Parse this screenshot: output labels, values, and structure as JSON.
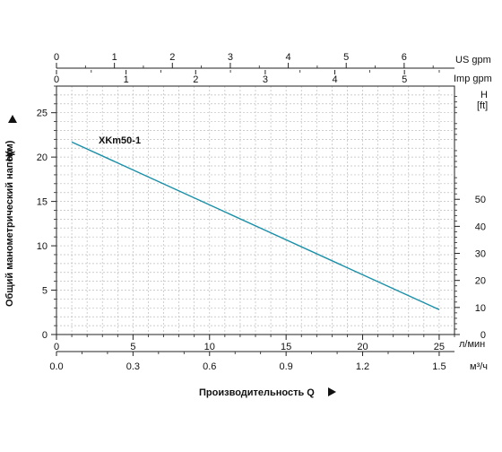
{
  "chart_data": {
    "type": "line",
    "title": "",
    "series": [
      {
        "name": "XKm50-1",
        "x": [
          1,
          25
        ],
        "y": [
          21.7,
          2.8
        ],
        "color": "#1a8fa8"
      }
    ],
    "xlabel": "Производительность Q",
    "ylabel_main": "Общий манометрический напор",
    "ylabel_h": "H(м)",
    "x_lpm": {
      "unit": "л/мин",
      "range": [
        0,
        26
      ],
      "ticks": [
        "0",
        "5",
        "10",
        "15",
        "20",
        "25"
      ]
    },
    "x_m3h": {
      "unit": "м³/ч",
      "ticks": [
        "0.0",
        "0.3",
        "0.6",
        "0.9",
        "1.2",
        "1.5"
      ]
    },
    "x_usgpm": {
      "unit": "US gpm",
      "ticks": [
        "0",
        "1",
        "2",
        "3",
        "4",
        "5",
        "6"
      ]
    },
    "x_impgpm": {
      "unit": "Imp gpm",
      "ticks": [
        "0",
        "1",
        "2",
        "3",
        "4",
        "5"
      ]
    },
    "y_m": {
      "range": [
        0,
        28
      ],
      "ticks": [
        "0",
        "5",
        "10",
        "15",
        "20",
        "25"
      ]
    },
    "y_ft": {
      "unit_line1": "H",
      "unit_line2": "[ft]",
      "ticks": [
        "0",
        "10",
        "20",
        "30",
        "40",
        "50"
      ]
    },
    "grid": true
  }
}
